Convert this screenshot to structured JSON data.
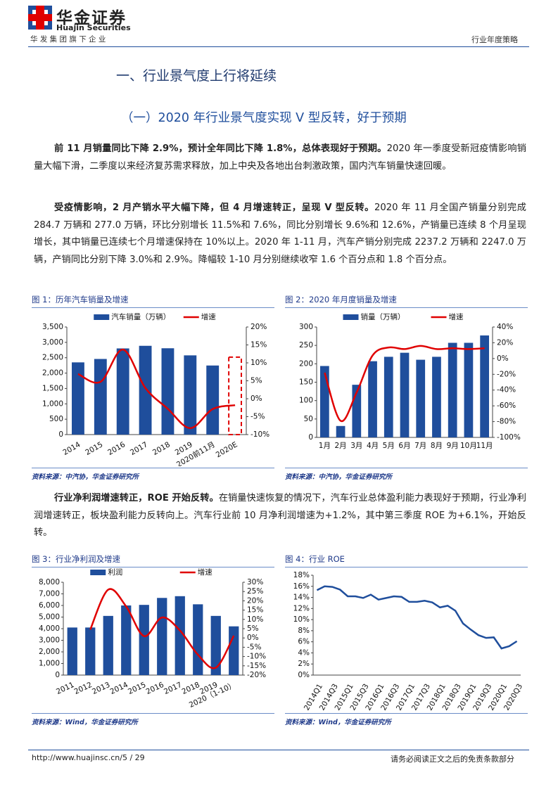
{
  "header": {
    "logo_cn": "华金证券",
    "logo_en": "Huajin Securities",
    "group": "华 发 集 团 旗 下 企 业",
    "report_type": "行业年度策略"
  },
  "section_title": "一、行业景气度上行将延续",
  "subsection_title": "（一）2020 年行业景气度实现 V 型反转，好于预期",
  "paragraphs": [
    {
      "bold": "前 11 月销量同比下降 2.9%，预计全年同比下降 1.8%，总体表现好于预期。",
      "text": "2020 年一季度受新冠疫情影响销量大幅下滑，二季度以来经济复苏需求释放，加上中央及各地出台刺激政策，国内汽车销量快速回暖。"
    },
    {
      "bold": "受疫情影响，2 月产销水平大幅下降，但 4 月增速转正，呈现 V 型反转。",
      "text": "2020 年 11 月全国产销量分别完成 284.7 万辆和 277.0 万辆，环比分别增长 11.5%和 7.6%，同比分别增长 9.6%和 12.6%，产销量已连续 8 个月呈现增长，其中销量已连续七个月增速保持在 10%以上。2020 年 1-11 月，汽车产销分别完成 2237.2 万辆和 2247.0 万辆，产销同比分别下降 3.0%和 2.9%。降幅较 1-10 月分别继续收窄 1.6 个百分点和 1.8 个百分点。"
    },
    {
      "bold": "行业净利润增速转正，ROE 开始反转。",
      "text": "在销量快速恢复的情况下，汽车行业总体盈利能力表现好于预期，行业净利润增速转正，板块盈利能力反转向上。汽车行业前 10 月净利润增速为+1.2%，其中第三季度 ROE 为+6.1%，开始反转。"
    }
  ],
  "figures": [
    {
      "caption": "图 1：历年汽车销量及增速",
      "source": "资料来源：中汽协，华金证券研究所",
      "chart": {
        "type": "bar-line",
        "categories": [
          "2014",
          "2015",
          "2016",
          "2017",
          "2018",
          "2019",
          "2020前11月",
          "2020E"
        ],
        "series": [
          {
            "name": "汽车销量（万辆）",
            "type": "bar",
            "color": "#1f4e9c",
            "values": [
              2349,
              2460,
              2803,
              2888,
              2808,
              2577,
              2247,
              2520
            ],
            "dashed": [
              false,
              false,
              false,
              false,
              false,
              false,
              false,
              true
            ],
            "dash_color": "#e00000"
          },
          {
            "name": "增速",
            "type": "line",
            "axis": "y2",
            "color": "#e00000",
            "values": [
              6.9,
              4.7,
              13.7,
              3.0,
              -2.8,
              -8.2,
              -2.9,
              -1.8
            ]
          }
        ],
        "ylim": [
          0,
          3500
        ],
        "yticks": [
          0,
          {
            "value": 500,
            "label": "500"
          },
          {
            "value": 1000,
            "label": "1,000"
          },
          {
            "value": 1500,
            "label": "1,500"
          },
          {
            "value": 2000,
            "label": "2,000"
          },
          {
            "value": 2500,
            "label": "2,500"
          },
          {
            "value": 3000,
            "label": "3,000"
          },
          {
            "value": 3500,
            "label": "3,500"
          }
        ],
        "y2lim": [
          -10,
          20
        ],
        "y2ticks": [
          {
            "value": -10,
            "label": "-10%"
          },
          {
            "value": -5,
            "label": "-5%"
          },
          {
            "value": 0,
            "label": "0%"
          },
          {
            "value": 5,
            "label": "5%"
          },
          {
            "value": 10,
            "label": "10%"
          },
          {
            "value": 15,
            "label": "15%"
          },
          {
            "value": 20,
            "label": "20%"
          }
        ],
        "smooth": true
      }
    },
    {
      "caption": "图 2：2020 年月度销量及增速",
      "source": "资料来源：中汽协，华金证券研究所",
      "chart": {
        "type": "bar-line",
        "categories": [
          "1月",
          "2月",
          "3月",
          "4月",
          "5月",
          "6月",
          "7月",
          "8月",
          "9月",
          "10月",
          "11月"
        ],
        "series": [
          {
            "name": "销量（万辆）",
            "type": "bar",
            "color": "#1f4e9c",
            "values": [
              194,
              31,
              143,
              207,
              219,
              230,
              211,
              219,
              257,
              257,
              277
            ]
          },
          {
            "name": "增速",
            "type": "line",
            "axis": "y2",
            "color": "#e00000",
            "values": [
              -18,
              -79,
              -43,
              4,
              14,
              12,
              16,
              12,
              13,
              12,
              13
            ]
          }
        ],
        "ylim": [
          0,
          300
        ],
        "yticks": [
          0,
          50,
          100,
          150,
          200,
          250,
          300
        ],
        "y2lim": [
          -100,
          40
        ],
        "y2ticks": [
          {
            "value": -100,
            "label": "-100%"
          },
          {
            "value": -80,
            "label": "-80%"
          },
          {
            "value": -60,
            "label": "-60%"
          },
          {
            "value": -40,
            "label": "-40%"
          },
          {
            "value": -20,
            "label": "-20%"
          },
          {
            "value": 0,
            "label": "0%"
          },
          {
            "value": 20,
            "label": "20%"
          },
          {
            "value": 40,
            "label": "40%"
          }
        ],
        "smooth": true
      }
    },
    {
      "caption": "图 3：行业净利润及增速",
      "source": "资料来源：Wind，华金证券研究所",
      "chart": {
        "type": "bar-line",
        "categories": [
          "2011",
          "2012",
          "2013",
          "2014",
          "2015",
          "2016",
          "2017",
          "2018",
          "2019",
          "2020（1-10）"
        ],
        "series": [
          {
            "name": "利润",
            "type": "bar",
            "color": "#1f4e9c",
            "values": [
              4100,
              4100,
              5100,
              6000,
              6050,
              6650,
              6800,
              6100,
              5100,
              4200
            ]
          },
          {
            "name": "增速",
            "type": "line",
            "axis": "y2",
            "color": "#e00000",
            "values": [
              null,
              4.5,
              26,
              17,
              1,
              11,
              4,
              -9,
              -16,
              1.2
            ]
          }
        ],
        "ylim": [
          0,
          8000
        ],
        "yticks": [
          0,
          {
            "value": 1000,
            "label": "1,000"
          },
          {
            "value": 2000,
            "label": "2,000"
          },
          {
            "value": 3000,
            "label": "3,000"
          },
          {
            "value": 4000,
            "label": "4,000"
          },
          {
            "value": 5000,
            "label": "5,000"
          },
          {
            "value": 6000,
            "label": "6,000"
          },
          {
            "value": 7000,
            "label": "7,000"
          },
          {
            "value": 8000,
            "label": "8,000"
          }
        ],
        "y2lim": [
          -20,
          30
        ],
        "y2ticks": [
          {
            "value": -20,
            "label": "-20%"
          },
          {
            "value": -15,
            "label": "-15%"
          },
          {
            "value": -10,
            "label": "-10%"
          },
          {
            "value": -5,
            "label": "-5%"
          },
          {
            "value": 0,
            "label": "0%"
          },
          {
            "value": 5,
            "label": "5%"
          },
          {
            "value": 10,
            "label": "10%"
          },
          {
            "value": 15,
            "label": "15%"
          },
          {
            "value": 20,
            "label": "20%"
          },
          {
            "value": 25,
            "label": "25%"
          },
          {
            "value": 30,
            "label": "30%"
          }
        ],
        "smooth": true
      }
    },
    {
      "caption": "图 4：行业 ROE",
      "source": "资料来源：Wind，华金证券研究所",
      "chart": {
        "type": "line",
        "categories": [
          "2014Q1",
          null,
          "2014Q3",
          null,
          "2015Q1",
          null,
          "2015Q3",
          null,
          "2016Q1",
          null,
          "2016Q3",
          null,
          "2017Q1",
          null,
          "2017Q3",
          null,
          "2018Q1",
          null,
          "2018Q3",
          null,
          "2019Q1",
          null,
          "2019Q3",
          null,
          "2020Q1",
          null,
          "2020Q3"
        ],
        "values": [
          15.3,
          16.0,
          15.9,
          15.4,
          14.2,
          14.2,
          13.9,
          14.5,
          13.6,
          13.9,
          14.2,
          14.1,
          13.2,
          13.2,
          13.4,
          13.1,
          12.2,
          12.5,
          11.6,
          9.3,
          8.2,
          7.2,
          6.7,
          6.8,
          4.8,
          5.2,
          6.1
        ],
        "color": "#1f4e9c",
        "ylim": [
          0,
          18
        ],
        "yticks": [
          {
            "value": 0,
            "label": "0%"
          },
          {
            "value": 2,
            "label": "2%"
          },
          {
            "value": 4,
            "label": "4%"
          },
          {
            "value": 6,
            "label": "6%"
          },
          {
            "value": 8,
            "label": "8%"
          },
          {
            "value": 10,
            "label": "10%"
          },
          {
            "value": 12,
            "label": "12%"
          },
          {
            "value": 14,
            "label": "14%"
          },
          {
            "value": 16,
            "label": "16%"
          },
          {
            "value": 18,
            "label": "18%"
          }
        ],
        "smooth": false
      }
    }
  ],
  "footer": {
    "url": "http://www.huajinsc.cn/",
    "page": "5 / 29",
    "disclaimer": "请务必阅读正文之后的免责条款部分"
  }
}
